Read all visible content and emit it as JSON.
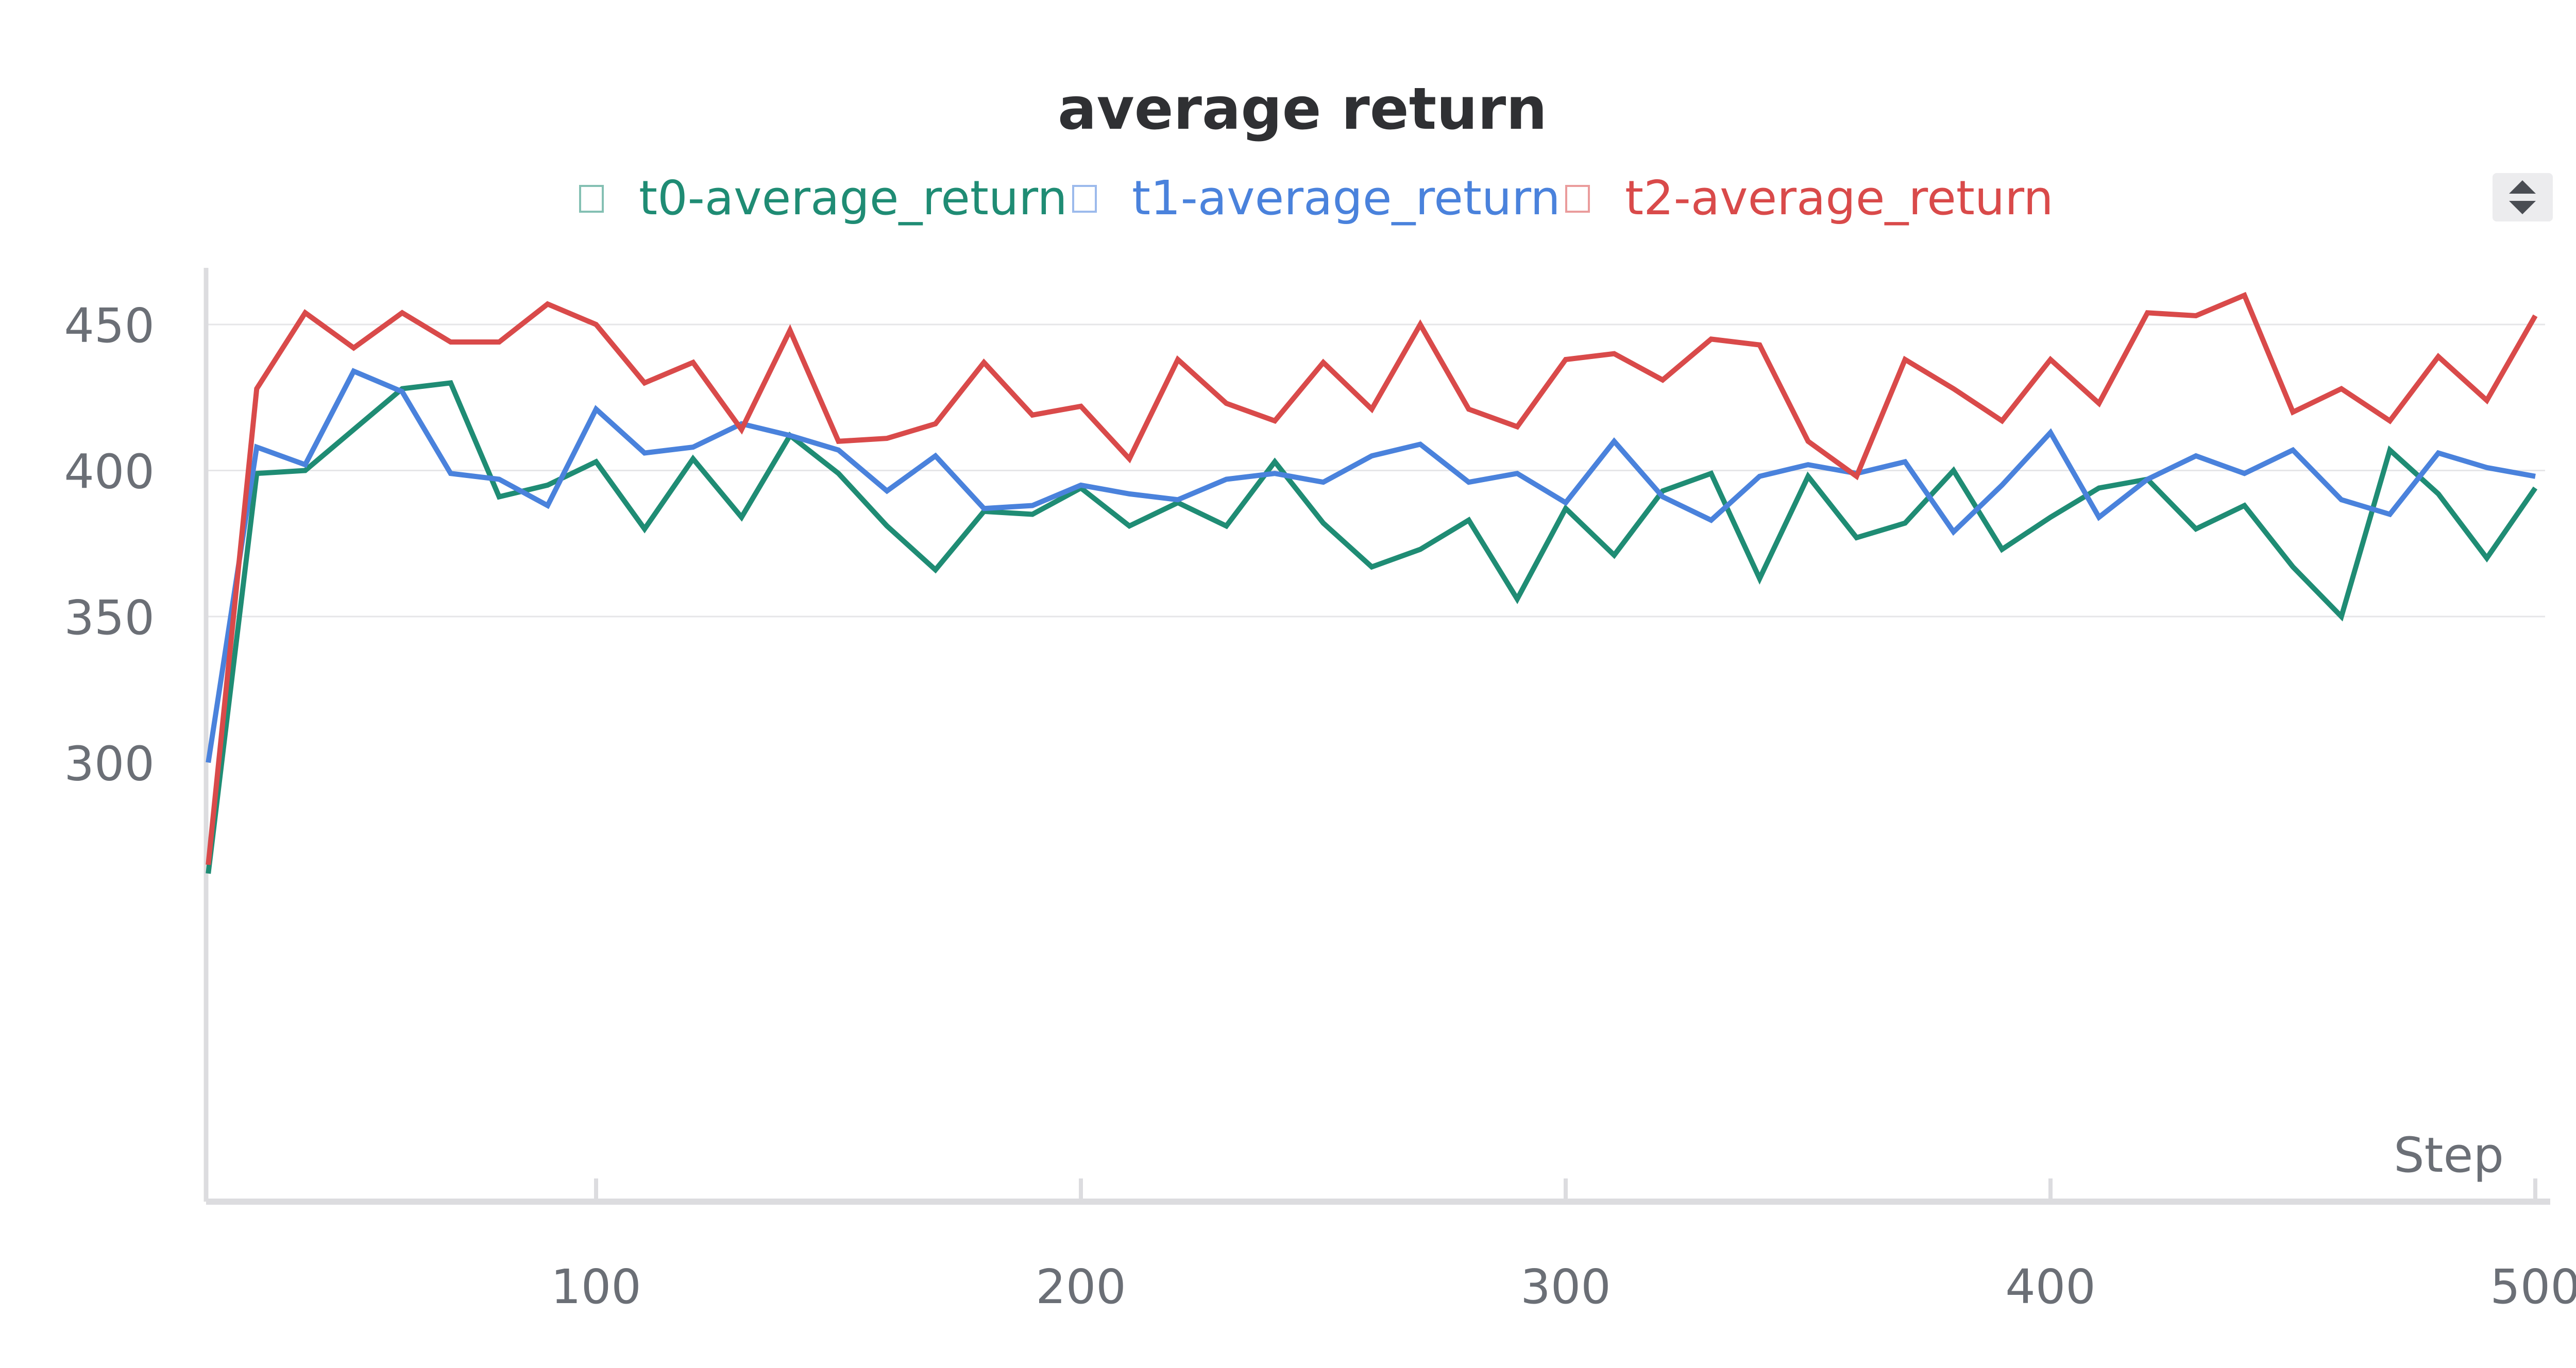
{
  "chart_data": {
    "type": "line",
    "title": "average return",
    "xlabel": "Step",
    "ylabel": "",
    "xlim": [
      20,
      500
    ],
    "ylim": [
      290,
      460
    ],
    "x_ticks": [
      "100",
      "200",
      "300",
      "400",
      "500"
    ],
    "y_ticks": [
      "450",
      "400",
      "350",
      "300"
    ],
    "grid": true,
    "legend_position": "top-center",
    "x": [
      20,
      30,
      40,
      50,
      60,
      70,
      80,
      90,
      100,
      110,
      120,
      130,
      140,
      150,
      160,
      170,
      180,
      190,
      200,
      210,
      220,
      230,
      240,
      250,
      260,
      270,
      280,
      290,
      300,
      310,
      320,
      330,
      340,
      350,
      360,
      370,
      380,
      390,
      400,
      410,
      420,
      430,
      440,
      450,
      460,
      470,
      480,
      490,
      500
    ],
    "series": [
      {
        "name": "t0-average_return",
        "color": "#1f8c74",
        "values": [
          262,
          399,
          400,
          414,
          428,
          430,
          391,
          395,
          403,
          380,
          404,
          384,
          412,
          399,
          381,
          366,
          386,
          385,
          394,
          381,
          389,
          381,
          403,
          382,
          367,
          373,
          383,
          356,
          387,
          371,
          393,
          399,
          363,
          398,
          377,
          382,
          400,
          373,
          384,
          394,
          397,
          380,
          388,
          367,
          350,
          407,
          392,
          370,
          394
        ]
      },
      {
        "name": "t1-average_return",
        "color": "#4a82dc",
        "values": [
          300,
          408,
          402,
          434,
          427,
          399,
          397,
          388,
          421,
          406,
          408,
          416,
          412,
          407,
          393,
          405,
          387,
          388,
          395,
          392,
          390,
          397,
          399,
          396,
          405,
          409,
          396,
          399,
          389,
          410,
          391,
          383,
          398,
          402,
          399,
          403,
          379,
          395,
          413,
          384,
          397,
          405,
          399,
          407,
          390,
          385,
          406,
          401,
          398
        ]
      },
      {
        "name": "t2-average_return",
        "color": "#d94a4a",
        "values": [
          265,
          428,
          454,
          442,
          454,
          444,
          444,
          457,
          450,
          430,
          437,
          414,
          448,
          410,
          411,
          416,
          437,
          419,
          422,
          404,
          438,
          423,
          417,
          437,
          421,
          450,
          421,
          415,
          438,
          440,
          431,
          445,
          443,
          410,
          398,
          438,
          428,
          417,
          438,
          423,
          454,
          453,
          460,
          420,
          428,
          417,
          439,
          424,
          453
        ]
      }
    ]
  }
}
